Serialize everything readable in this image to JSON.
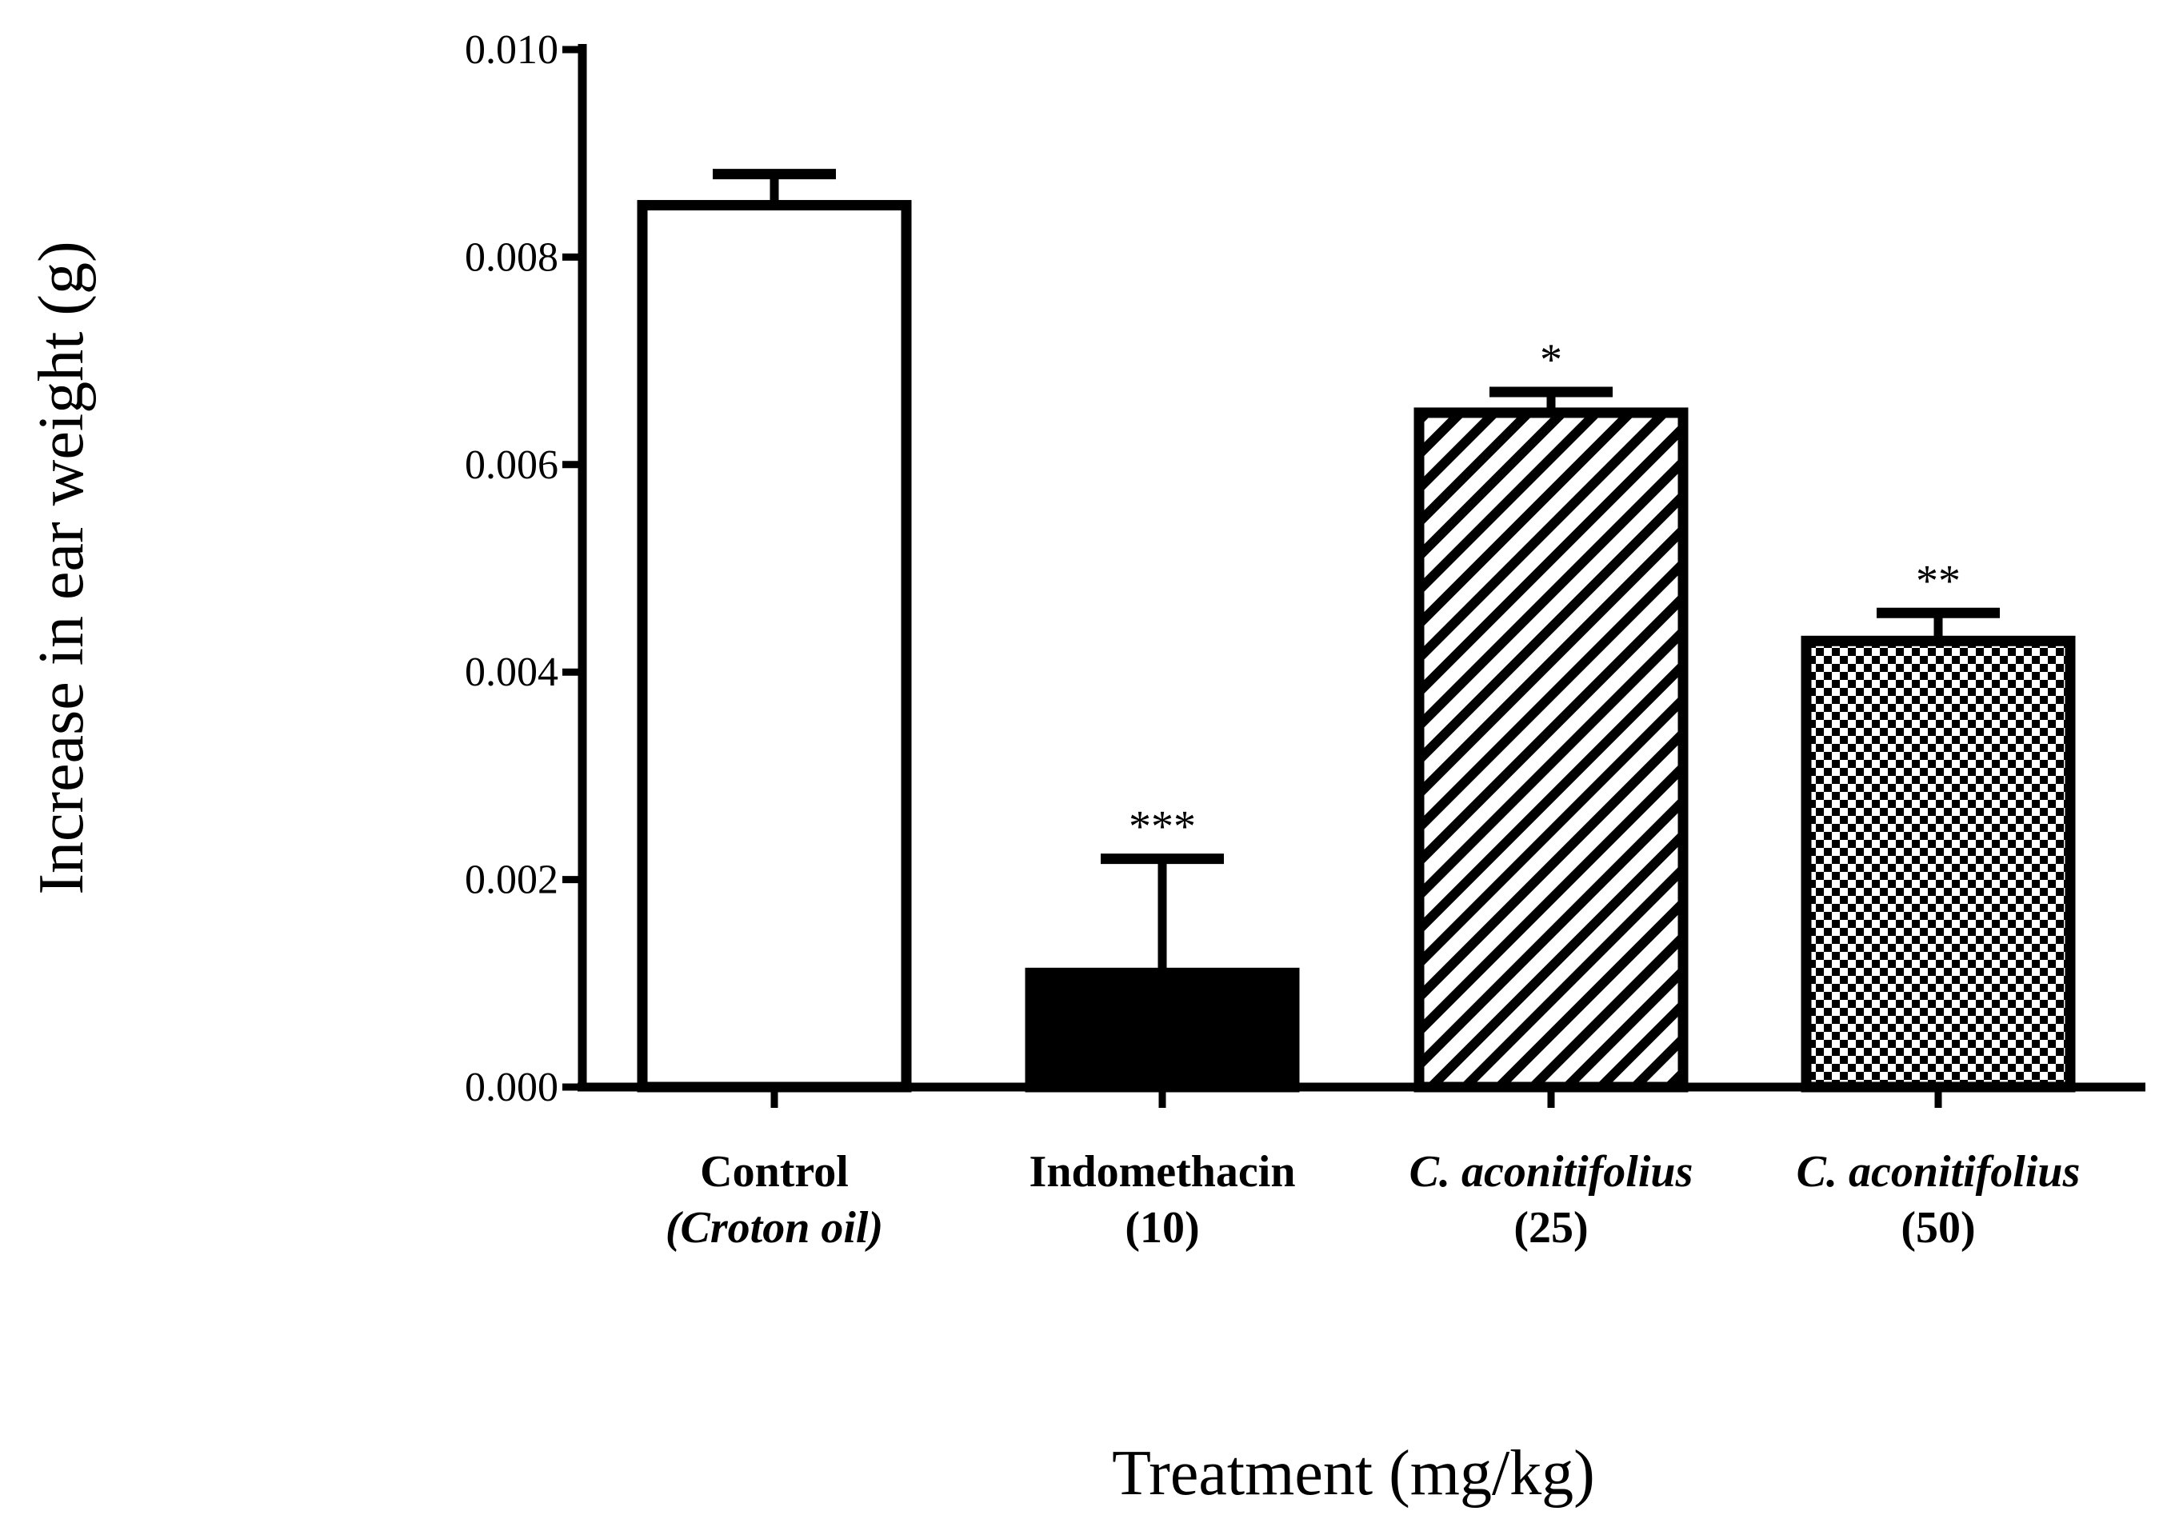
{
  "chart_data": {
    "type": "bar",
    "title": "",
    "xlabel": "Treatment (mg/kg)",
    "ylabel": "Increase in ear weight (g)",
    "ylim": [
      0,
      0.01
    ],
    "yticks": [
      {
        "value": 0.0,
        "label": "0.000"
      },
      {
        "value": 0.002,
        "label": "0.002"
      },
      {
        "value": 0.004,
        "label": "0.004"
      },
      {
        "value": 0.006,
        "label": "0.006"
      },
      {
        "value": 0.008,
        "label": "0.008"
      },
      {
        "value": 0.01,
        "label": "0.010"
      }
    ],
    "bars": [
      {
        "name": "Control",
        "line2": "(Croton oil)",
        "line1_italic": false,
        "line2_italic": true,
        "value": 0.0085,
        "error": 0.0003,
        "significance": "",
        "fill": "white"
      },
      {
        "name": "Indomethacin",
        "line2": "(10)",
        "line1_italic": false,
        "line2_italic": false,
        "value": 0.0011,
        "error": 0.0011,
        "significance": "***",
        "fill": "solid"
      },
      {
        "name": "C. aconitifolius",
        "line2": "(25)",
        "line1_italic": true,
        "line2_italic": false,
        "value": 0.0065,
        "error": 0.0002,
        "significance": "*",
        "fill": "diagonal"
      },
      {
        "name": "C. aconitifolius",
        "line2": "(50)",
        "line1_italic": true,
        "line2_italic": false,
        "value": 0.0043,
        "error": 0.00027,
        "significance": "**",
        "fill": "checker"
      }
    ]
  }
}
